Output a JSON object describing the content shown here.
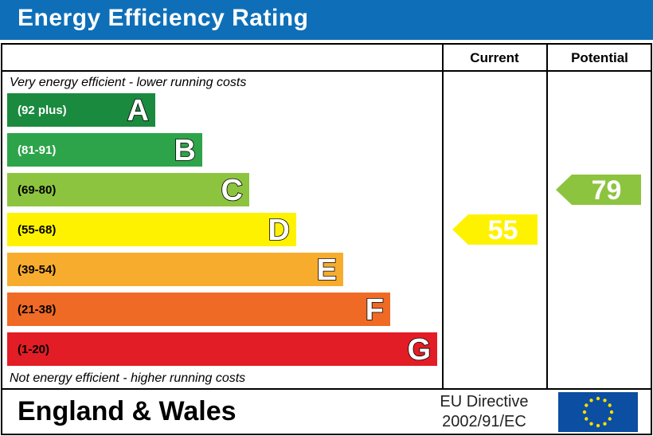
{
  "header": {
    "title": "Energy Efficiency Rating"
  },
  "columns": {
    "current": "Current",
    "potential": "Potential"
  },
  "captions": {
    "top": "Very energy efficient - lower running costs",
    "bottom": "Not energy efficient - higher running costs"
  },
  "chart_data": {
    "type": "bar",
    "categories": [
      "A",
      "B",
      "C",
      "D",
      "E",
      "F",
      "G"
    ],
    "bands": [
      {
        "letter": "A",
        "range": "(92 plus)",
        "color": "#1a8a3e",
        "range_text_color": "#ffffff"
      },
      {
        "letter": "B",
        "range": "(81-91)",
        "color": "#2ea44a",
        "range_text_color": "#ffffff"
      },
      {
        "letter": "C",
        "range": "(69-80)",
        "color": "#8dc43f",
        "range_text_color": "#000000"
      },
      {
        "letter": "D",
        "range": "(55-68)",
        "color": "#fff200",
        "range_text_color": "#000000"
      },
      {
        "letter": "E",
        "range": "(39-54)",
        "color": "#f7ac2e",
        "range_text_color": "#000000"
      },
      {
        "letter": "F",
        "range": "(21-38)",
        "color": "#ee6a25",
        "range_text_color": "#000000"
      },
      {
        "letter": "G",
        "range": "(1-20)",
        "color": "#e31d25",
        "range_text_color": "#000000"
      }
    ],
    "ratings": [
      {
        "column": "current",
        "value": 55,
        "band": "D",
        "color": "#fff200"
      },
      {
        "column": "potential",
        "value": 79,
        "band": "C",
        "color": "#8dc43f"
      }
    ]
  },
  "footer": {
    "region": "England & Wales",
    "directive_line1": "EU Directive",
    "directive_line2": "2002/91/EC",
    "flag_icon": "eu-flag-icon",
    "flag_color": "#0b4ea2",
    "star_color": "#ffdd00"
  }
}
